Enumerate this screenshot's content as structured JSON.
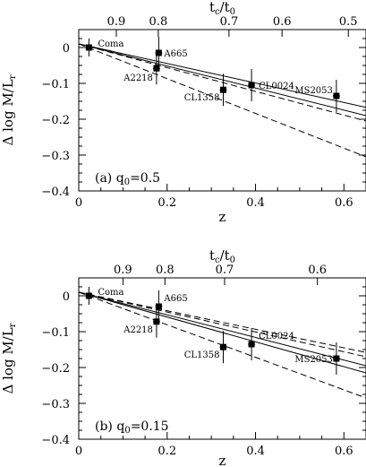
{
  "chart_data": [
    {
      "type": "scatter",
      "panel_label": "(a)  q",
      "panel_label_sub": "0",
      "panel_label_value": "=0.5",
      "xlabel": "z",
      "ylabel_main": "Δ log M/L",
      "ylabel_sub": "r",
      "top_axis_label_main": "t",
      "top_axis_label_sub1": "c",
      "top_axis_label_mid": "/t",
      "top_axis_label_sub2": "0",
      "xlim": [
        0,
        0.65
      ],
      "ylim": [
        -0.4,
        0.05
      ],
      "x_ticks": [
        0,
        0.2,
        0.4,
        0.6
      ],
      "x_tick_labels": [
        "0",
        "0.2",
        "0.4",
        "0.6"
      ],
      "y_ticks": [
        0,
        -0.1,
        -0.2,
        -0.3,
        -0.4
      ],
      "y_tick_labels": [
        "0",
        "−0.1",
        "−0.2",
        "−0.3",
        "−0.4"
      ],
      "top_ticks_z": [
        0.085,
        0.18,
        0.34,
        0.46,
        0.61
      ],
      "top_tick_labels": [
        "0.9",
        "0.8",
        "0.7",
        "0.6",
        "0.5"
      ],
      "points": [
        {
          "name": "Coma",
          "z": 0.023,
          "value": 0.0,
          "err": 0.025
        },
        {
          "name": "A665",
          "z": 0.181,
          "value": -0.015,
          "err": 0.045
        },
        {
          "name": "A2218",
          "z": 0.176,
          "value": -0.058,
          "err": 0.045
        },
        {
          "name": "CL1358",
          "z": 0.327,
          "value": -0.118,
          "err": 0.045
        },
        {
          "name": "CL0024",
          "z": 0.391,
          "value": -0.105,
          "err": 0.045
        },
        {
          "name": "MS2053",
          "z": 0.583,
          "value": -0.135,
          "err": 0.045
        }
      ],
      "models": [
        {
          "style": "solid",
          "x": [
            0,
            0.65
          ],
          "y": [
            0.01,
            -0.167
          ]
        },
        {
          "style": "solid",
          "x": [
            0,
            0.65
          ],
          "y": [
            0.01,
            -0.19
          ]
        },
        {
          "style": "dashed",
          "x": [
            0,
            0.65
          ],
          "y": [
            0.01,
            -0.205
          ]
        },
        {
          "style": "dashed",
          "x": [
            0,
            0.65
          ],
          "y": [
            0.01,
            -0.305
          ]
        }
      ]
    },
    {
      "type": "scatter",
      "panel_label": "(b)  q",
      "panel_label_sub": "0",
      "panel_label_value": "=0.15",
      "xlabel": "z",
      "ylabel_main": "Δ log M/L",
      "ylabel_sub": "r",
      "top_axis_label_main": "t",
      "top_axis_label_sub1": "c",
      "top_axis_label_mid": "/t",
      "top_axis_label_sub2": "0",
      "xlim": [
        0,
        0.65
      ],
      "ylim": [
        -0.4,
        0.05
      ],
      "x_ticks": [
        0,
        0.2,
        0.4,
        0.6
      ],
      "x_tick_labels": [
        "0",
        "0.2",
        "0.4",
        "0.6"
      ],
      "y_ticks": [
        0,
        -0.1,
        -0.2,
        -0.3,
        -0.4
      ],
      "y_tick_labels": [
        "0",
        "−0.1",
        "−0.2",
        "−0.3",
        "−0.4"
      ],
      "top_ticks_z": [
        0.1,
        0.195,
        0.33,
        0.54
      ],
      "top_tick_labels": [
        "0.9",
        "0.8",
        "0.7",
        "0.6"
      ],
      "points": [
        {
          "name": "Coma",
          "z": 0.023,
          "value": 0.0,
          "err": 0.025
        },
        {
          "name": "A665",
          "z": 0.181,
          "value": -0.03,
          "err": 0.045
        },
        {
          "name": "A2218",
          "z": 0.176,
          "value": -0.072,
          "err": 0.045
        },
        {
          "name": "CL1358",
          "z": 0.327,
          "value": -0.143,
          "err": 0.045
        },
        {
          "name": "CL0024",
          "z": 0.391,
          "value": -0.135,
          "err": 0.045
        },
        {
          "name": "MS2053",
          "z": 0.583,
          "value": -0.175,
          "err": 0.045
        }
      ],
      "models": [
        {
          "style": "dashed",
          "x": [
            0,
            0.65
          ],
          "y": [
            0.01,
            -0.158
          ]
        },
        {
          "style": "dashed",
          "x": [
            0,
            0.65
          ],
          "y": [
            0.01,
            -0.17
          ]
        },
        {
          "style": "solid",
          "x": [
            0,
            0.65
          ],
          "y": [
            0.01,
            -0.195
          ]
        },
        {
          "style": "solid",
          "x": [
            0,
            0.65
          ],
          "y": [
            0.01,
            -0.215
          ]
        },
        {
          "style": "dashed",
          "x": [
            0,
            0.65
          ],
          "y": [
            0.01,
            -0.285
          ]
        }
      ]
    }
  ]
}
